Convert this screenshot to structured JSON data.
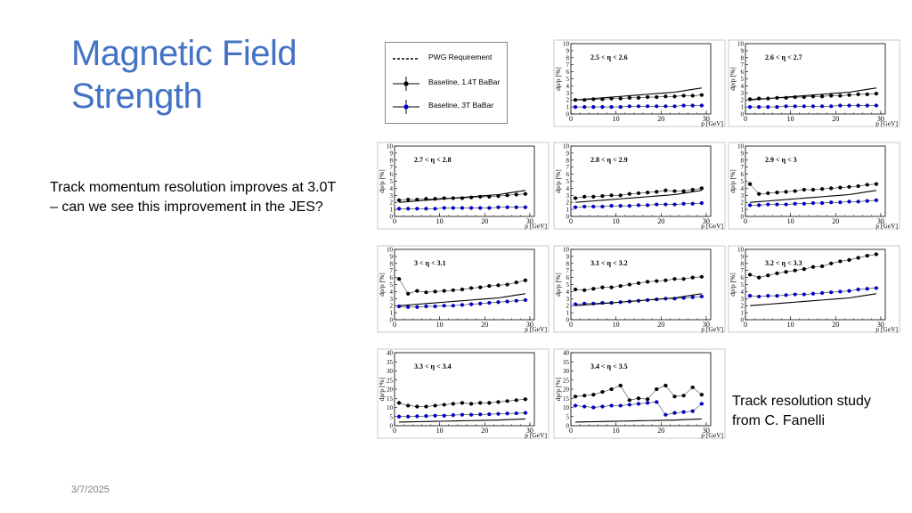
{
  "slide": {
    "title_line1": "Magnetic Field",
    "title_line2": "Strength",
    "body": "Track momentum resolution improves at 3.0T – can we see this improvement in the JES?",
    "caption": "Track resolution study from C. Fanelli",
    "date": "3/7/2025"
  },
  "legend": {
    "items": [
      {
        "label": "PWG Requirement",
        "color": "#000000",
        "style": "dashed"
      },
      {
        "label": "Baseline, 1.4T BaBar",
        "color": "#000000",
        "style": "marker"
      },
      {
        "label": "Baseline, 3T BaBar",
        "color": "#0000cc",
        "style": "marker"
      }
    ]
  },
  "colors": {
    "title": "#4472c4",
    "baseline_14": "#000000",
    "baseline_3": "#0000cc",
    "requirement": "#000000"
  },
  "chart_data": [
    {
      "type": "scatter",
      "title": "2.5 < η < 2.6",
      "xlabel": "p [GeV]",
      "ylabel": "dp/p [%]",
      "xlim": [
        0,
        31
      ],
      "ylim": [
        0,
        10
      ],
      "x": [
        1,
        3,
        5,
        7,
        9,
        11,
        13,
        15,
        17,
        19,
        21,
        23,
        25,
        27,
        29
      ],
      "series": [
        {
          "name": "Baseline, 1.4T BaBar",
          "values": [
            2.0,
            2.0,
            2.1,
            2.1,
            2.2,
            2.2,
            2.3,
            2.3,
            2.4,
            2.4,
            2.5,
            2.5,
            2.6,
            2.6,
            2.7
          ]
        },
        {
          "name": "Baseline, 3T BaBar",
          "values": [
            1.0,
            1.0,
            1.0,
            1.0,
            1.0,
            1.0,
            1.1,
            1.1,
            1.1,
            1.1,
            1.1,
            1.1,
            1.2,
            1.2,
            1.2
          ]
        },
        {
          "name": "PWG Requirement",
          "values": [
            2.0,
            2.1,
            2.2,
            2.3,
            2.4,
            2.5,
            2.6,
            2.7,
            2.8,
            2.9,
            3.0,
            3.1,
            3.3,
            3.5,
            3.7
          ]
        }
      ]
    },
    {
      "type": "scatter",
      "title": "2.6 < η < 2.7",
      "xlabel": "p [GeV]",
      "ylabel": "dp/p [%]",
      "xlim": [
        0,
        31
      ],
      "ylim": [
        0,
        10
      ],
      "x": [
        1,
        3,
        5,
        7,
        9,
        11,
        13,
        15,
        17,
        19,
        21,
        23,
        25,
        27,
        29
      ],
      "series": [
        {
          "name": "Baseline, 1.4T BaBar",
          "values": [
            2.1,
            2.2,
            2.2,
            2.3,
            2.3,
            2.4,
            2.4,
            2.5,
            2.5,
            2.6,
            2.6,
            2.7,
            2.8,
            2.8,
            2.9
          ]
        },
        {
          "name": "Baseline, 3T BaBar",
          "values": [
            1.0,
            1.0,
            1.0,
            1.0,
            1.1,
            1.1,
            1.1,
            1.1,
            1.1,
            1.1,
            1.2,
            1.2,
            1.2,
            1.2,
            1.2
          ]
        },
        {
          "name": "PWG Requirement",
          "values": [
            2.0,
            2.1,
            2.2,
            2.3,
            2.4,
            2.5,
            2.6,
            2.7,
            2.8,
            2.9,
            3.0,
            3.1,
            3.3,
            3.5,
            3.7
          ]
        }
      ]
    },
    {
      "type": "scatter",
      "title": "2.7 < η < 2.8",
      "xlabel": "p [GeV]",
      "ylabel": "dp/p [%]",
      "xlim": [
        0,
        31
      ],
      "ylim": [
        0,
        10
      ],
      "x": [
        1,
        3,
        5,
        7,
        9,
        11,
        13,
        15,
        17,
        19,
        21,
        23,
        25,
        27,
        29
      ],
      "series": [
        {
          "name": "Baseline, 1.4T BaBar",
          "values": [
            2.3,
            2.4,
            2.4,
            2.5,
            2.5,
            2.6,
            2.6,
            2.6,
            2.7,
            2.8,
            2.8,
            2.9,
            3.0,
            3.1,
            3.2
          ]
        },
        {
          "name": "Baseline, 3T BaBar",
          "values": [
            1.1,
            1.1,
            1.1,
            1.1,
            1.1,
            1.2,
            1.2,
            1.2,
            1.2,
            1.2,
            1.2,
            1.3,
            1.3,
            1.3,
            1.3
          ]
        },
        {
          "name": "PWG Requirement",
          "values": [
            2.0,
            2.1,
            2.2,
            2.3,
            2.4,
            2.5,
            2.6,
            2.7,
            2.8,
            2.9,
            3.0,
            3.1,
            3.3,
            3.5,
            3.7
          ]
        }
      ]
    },
    {
      "type": "scatter",
      "title": "2.8 < η < 2.9",
      "xlabel": "p [GeV]",
      "ylabel": "dp/p [%]",
      "xlim": [
        0,
        31
      ],
      "ylim": [
        0,
        10
      ],
      "x": [
        1,
        3,
        5,
        7,
        9,
        11,
        13,
        15,
        17,
        19,
        21,
        23,
        25,
        27,
        29
      ],
      "series": [
        {
          "name": "Baseline, 1.4T BaBar",
          "values": [
            2.6,
            2.8,
            2.8,
            2.9,
            3.0,
            3.0,
            3.2,
            3.3,
            3.4,
            3.5,
            3.7,
            3.6,
            3.6,
            3.8,
            4.0
          ]
        },
        {
          "name": "Baseline, 3T BaBar",
          "values": [
            1.3,
            1.4,
            1.4,
            1.4,
            1.5,
            1.5,
            1.5,
            1.6,
            1.6,
            1.7,
            1.7,
            1.7,
            1.8,
            1.8,
            1.9
          ]
        },
        {
          "name": "PWG Requirement",
          "values": [
            2.0,
            2.1,
            2.2,
            2.3,
            2.4,
            2.5,
            2.6,
            2.7,
            2.8,
            2.9,
            3.0,
            3.1,
            3.3,
            3.5,
            3.7
          ]
        }
      ]
    },
    {
      "type": "scatter",
      "title": "2.9 < η < 3",
      "xlabel": "p [GeV]",
      "ylabel": "dp/p [%]",
      "xlim": [
        0,
        31
      ],
      "ylim": [
        0,
        10
      ],
      "x": [
        1,
        3,
        5,
        7,
        9,
        11,
        13,
        15,
        17,
        19,
        21,
        23,
        25,
        27,
        29
      ],
      "series": [
        {
          "name": "Baseline, 1.4T BaBar",
          "values": [
            4.6,
            3.2,
            3.3,
            3.4,
            3.5,
            3.6,
            3.8,
            3.8,
            3.9,
            4.0,
            4.1,
            4.2,
            4.3,
            4.5,
            4.6
          ]
        },
        {
          "name": "Baseline, 3T BaBar",
          "values": [
            1.6,
            1.6,
            1.7,
            1.7,
            1.7,
            1.8,
            1.8,
            1.9,
            1.9,
            2.0,
            2.0,
            2.1,
            2.1,
            2.2,
            2.3
          ]
        },
        {
          "name": "PWG Requirement",
          "values": [
            2.0,
            2.1,
            2.2,
            2.3,
            2.4,
            2.5,
            2.6,
            2.7,
            2.8,
            2.9,
            3.0,
            3.1,
            3.3,
            3.5,
            3.7
          ]
        }
      ]
    },
    {
      "type": "scatter",
      "title": "3 < η < 3.1",
      "xlabel": "p [GeV]",
      "ylabel": "dp/p [%]",
      "xlim": [
        0,
        31
      ],
      "ylim": [
        0,
        10
      ],
      "x": [
        1,
        3,
        5,
        7,
        9,
        11,
        13,
        15,
        17,
        19,
        21,
        23,
        25,
        27,
        29
      ],
      "series": [
        {
          "name": "Baseline, 1.4T BaBar",
          "values": [
            5.8,
            3.7,
            4.1,
            3.9,
            4.0,
            4.1,
            4.2,
            4.3,
            4.5,
            4.6,
            4.8,
            4.9,
            5.0,
            5.3,
            5.6
          ]
        },
        {
          "name": "Baseline, 3T BaBar",
          "values": [
            1.9,
            1.8,
            1.8,
            1.9,
            1.9,
            2.0,
            2.0,
            2.1,
            2.2,
            2.3,
            2.4,
            2.5,
            2.6,
            2.7,
            2.8
          ]
        },
        {
          "name": "PWG Requirement",
          "values": [
            2.0,
            2.1,
            2.2,
            2.3,
            2.4,
            2.5,
            2.6,
            2.7,
            2.8,
            2.9,
            3.0,
            3.1,
            3.3,
            3.5,
            3.7
          ]
        }
      ]
    },
    {
      "type": "scatter",
      "title": "3.1 < η < 3.2",
      "xlabel": "p [GeV]",
      "ylabel": "dp/p [%]",
      "xlim": [
        0,
        31
      ],
      "ylim": [
        0,
        10
      ],
      "x": [
        1,
        3,
        5,
        7,
        9,
        11,
        13,
        15,
        17,
        19,
        21,
        23,
        25,
        27,
        29
      ],
      "series": [
        {
          "name": "Baseline, 1.4T BaBar",
          "values": [
            4.3,
            4.2,
            4.4,
            4.6,
            4.6,
            4.8,
            5.0,
            5.2,
            5.4,
            5.5,
            5.6,
            5.8,
            5.8,
            6.0,
            6.1
          ]
        },
        {
          "name": "Baseline, 3T BaBar",
          "values": [
            2.2,
            2.3,
            2.3,
            2.4,
            2.4,
            2.5,
            2.6,
            2.7,
            2.8,
            2.9,
            3.0,
            3.0,
            3.1,
            3.2,
            3.3
          ]
        },
        {
          "name": "PWG Requirement",
          "values": [
            2.0,
            2.1,
            2.2,
            2.3,
            2.4,
            2.5,
            2.6,
            2.7,
            2.8,
            2.9,
            3.0,
            3.1,
            3.3,
            3.5,
            3.7
          ]
        }
      ]
    },
    {
      "type": "scatter",
      "title": "3.2 < η < 3.3",
      "xlabel": "p [GeV]",
      "ylabel": "dp/p [%]",
      "xlim": [
        0,
        31
      ],
      "ylim": [
        0,
        10
      ],
      "x": [
        1,
        3,
        5,
        7,
        9,
        11,
        13,
        15,
        17,
        19,
        21,
        23,
        25,
        27,
        29
      ],
      "series": [
        {
          "name": "Baseline, 1.4T BaBar",
          "values": [
            6.4,
            6.0,
            6.3,
            6.6,
            6.8,
            7.0,
            7.2,
            7.5,
            7.6,
            8.0,
            8.3,
            8.5,
            8.8,
            9.1,
            9.3
          ]
        },
        {
          "name": "Baseline, 3T BaBar",
          "values": [
            3.4,
            3.3,
            3.4,
            3.4,
            3.5,
            3.6,
            3.6,
            3.7,
            3.8,
            3.9,
            4.0,
            4.1,
            4.3,
            4.4,
            4.5
          ]
        },
        {
          "name": "PWG Requirement",
          "values": [
            2.0,
            2.1,
            2.2,
            2.3,
            2.4,
            2.5,
            2.6,
            2.7,
            2.8,
            2.9,
            3.0,
            3.1,
            3.3,
            3.5,
            3.7
          ]
        }
      ]
    },
    {
      "type": "scatter",
      "title": "3.3 < η < 3.4",
      "xlabel": "p [GeV]",
      "ylabel": "dp/p [%]",
      "xlim": [
        0,
        31
      ],
      "ylim": [
        0,
        40
      ],
      "x": [
        1,
        3,
        5,
        7,
        9,
        11,
        13,
        15,
        17,
        19,
        21,
        23,
        25,
        27,
        29
      ],
      "series": [
        {
          "name": "Baseline, 1.4T BaBar",
          "values": [
            12.5,
            11.0,
            10.5,
            10.5,
            11.0,
            11.5,
            12.0,
            12.5,
            12.0,
            12.5,
            12.5,
            13.0,
            13.5,
            14.0,
            14.5
          ]
        },
        {
          "name": "Baseline, 3T BaBar",
          "values": [
            5.0,
            5.0,
            5.2,
            5.3,
            5.5,
            5.5,
            5.8,
            6.0,
            6.0,
            6.2,
            6.3,
            6.5,
            6.7,
            6.8,
            7.0
          ]
        },
        {
          "name": "PWG Requirement",
          "values": [
            2.0,
            2.1,
            2.2,
            2.3,
            2.4,
            2.5,
            2.6,
            2.7,
            2.8,
            2.9,
            3.0,
            3.1,
            3.3,
            3.5,
            3.7
          ]
        }
      ]
    },
    {
      "type": "scatter",
      "title": "3.4 < η < 3.5",
      "xlabel": "p [GeV]",
      "ylabel": "dp/p [%]",
      "xlim": [
        0,
        31
      ],
      "ylim": [
        0,
        40
      ],
      "x": [
        1,
        3,
        5,
        7,
        9,
        11,
        13,
        15,
        17,
        19,
        21,
        23,
        25,
        27,
        29
      ],
      "series": [
        {
          "name": "Baseline, 1.4T BaBar",
          "values": [
            16.0,
            16.5,
            17.0,
            18.5,
            20.0,
            22.0,
            14.0,
            15.0,
            14.5,
            20.0,
            22.0,
            16.0,
            16.5,
            21.0,
            17.0
          ]
        },
        {
          "name": "Baseline, 3T BaBar",
          "values": [
            11.0,
            10.5,
            10.0,
            10.5,
            11.0,
            11.0,
            11.5,
            12.0,
            12.5,
            13.0,
            6.0,
            7.0,
            7.5,
            8.0,
            12.0
          ]
        },
        {
          "name": "PWG Requirement",
          "values": [
            2.0,
            2.1,
            2.2,
            2.3,
            2.4,
            2.5,
            2.6,
            2.7,
            2.8,
            2.9,
            3.0,
            3.1,
            3.3,
            3.5,
            3.7
          ]
        }
      ]
    }
  ]
}
